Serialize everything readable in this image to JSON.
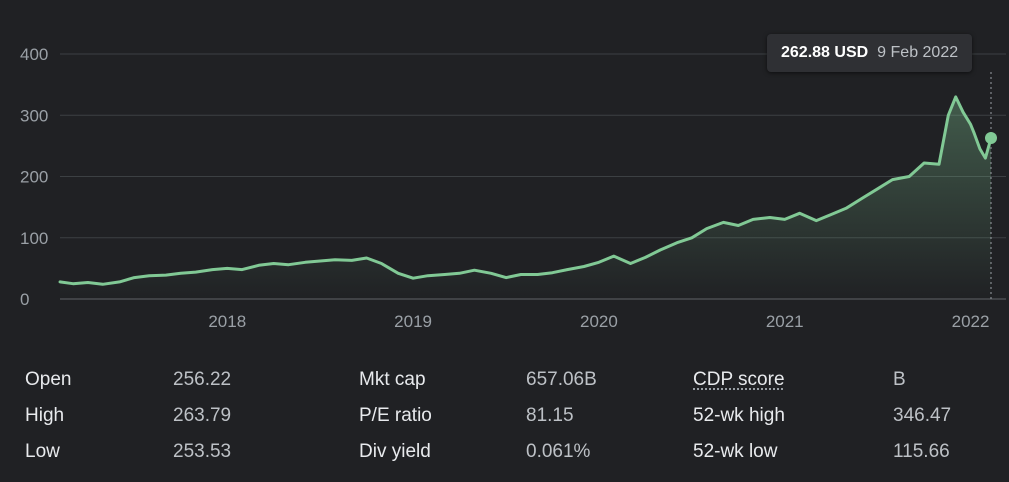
{
  "tooltip": {
    "price": "262.88 USD",
    "date": "9 Feb 2022"
  },
  "chart_data": {
    "type": "area",
    "title": "",
    "xlabel": "",
    "ylabel": "",
    "ylim": [
      0,
      400
    ],
    "yticks": [
      "0",
      "100",
      "200",
      "300",
      "400"
    ],
    "x_start": 2017.1,
    "x_end": 2022.11,
    "xticks": [
      {
        "label": "2018",
        "value": 2018
      },
      {
        "label": "2019",
        "value": 2019
      },
      {
        "label": "2020",
        "value": 2020
      },
      {
        "label": "2021",
        "value": 2021
      },
      {
        "label": "2022",
        "value": 2022
      }
    ],
    "grid": true,
    "line_color": "#81c995",
    "highlight": {
      "x": 2022.11,
      "y": 262.88
    },
    "series": [
      {
        "points": [
          [
            2017.1,
            28
          ],
          [
            2017.17,
            25
          ],
          [
            2017.25,
            27
          ],
          [
            2017.33,
            24
          ],
          [
            2017.42,
            28
          ],
          [
            2017.5,
            35
          ],
          [
            2017.58,
            38
          ],
          [
            2017.67,
            39
          ],
          [
            2017.75,
            42
          ],
          [
            2017.83,
            44
          ],
          [
            2017.92,
            48
          ],
          [
            2018.0,
            50
          ],
          [
            2018.08,
            48
          ],
          [
            2018.17,
            55
          ],
          [
            2018.25,
            58
          ],
          [
            2018.33,
            56
          ],
          [
            2018.42,
            60
          ],
          [
            2018.5,
            62
          ],
          [
            2018.58,
            64
          ],
          [
            2018.67,
            63
          ],
          [
            2018.75,
            67
          ],
          [
            2018.83,
            58
          ],
          [
            2018.92,
            42
          ],
          [
            2019.0,
            34
          ],
          [
            2019.08,
            38
          ],
          [
            2019.17,
            40
          ],
          [
            2019.25,
            42
          ],
          [
            2019.33,
            47
          ],
          [
            2019.42,
            42
          ],
          [
            2019.5,
            35
          ],
          [
            2019.58,
            40
          ],
          [
            2019.67,
            40
          ],
          [
            2019.75,
            43
          ],
          [
            2019.83,
            48
          ],
          [
            2019.92,
            53
          ],
          [
            2020.0,
            60
          ],
          [
            2020.08,
            70
          ],
          [
            2020.17,
            58
          ],
          [
            2020.25,
            68
          ],
          [
            2020.33,
            80
          ],
          [
            2020.42,
            92
          ],
          [
            2020.5,
            100
          ],
          [
            2020.58,
            115
          ],
          [
            2020.67,
            125
          ],
          [
            2020.75,
            120
          ],
          [
            2020.83,
            130
          ],
          [
            2020.92,
            133
          ],
          [
            2021.0,
            130
          ],
          [
            2021.08,
            140
          ],
          [
            2021.17,
            128
          ],
          [
            2021.25,
            138
          ],
          [
            2021.33,
            148
          ],
          [
            2021.42,
            165
          ],
          [
            2021.5,
            180
          ],
          [
            2021.58,
            195
          ],
          [
            2021.67,
            200
          ],
          [
            2021.75,
            222
          ],
          [
            2021.83,
            220
          ],
          [
            2021.88,
            300
          ],
          [
            2021.92,
            330
          ],
          [
            2021.96,
            305
          ],
          [
            2022.0,
            285
          ],
          [
            2022.02,
            270
          ],
          [
            2022.05,
            245
          ],
          [
            2022.08,
            230
          ],
          [
            2022.11,
            262.88
          ]
        ]
      }
    ]
  },
  "stats": {
    "rows": [
      [
        {
          "label": "Open",
          "value": "256.22"
        },
        {
          "label": "Mkt cap",
          "value": "657.06B"
        },
        {
          "label": "CDP score",
          "value": "B"
        }
      ],
      [
        {
          "label": "High",
          "value": "263.79"
        },
        {
          "label": "P/E ratio",
          "value": "81.15"
        },
        {
          "label": "52-wk high",
          "value": "346.47"
        }
      ],
      [
        {
          "label": "Low",
          "value": "253.53"
        },
        {
          "label": "Div yield",
          "value": "0.061%"
        },
        {
          "label": "52-wk low",
          "value": "115.66"
        }
      ]
    ]
  }
}
